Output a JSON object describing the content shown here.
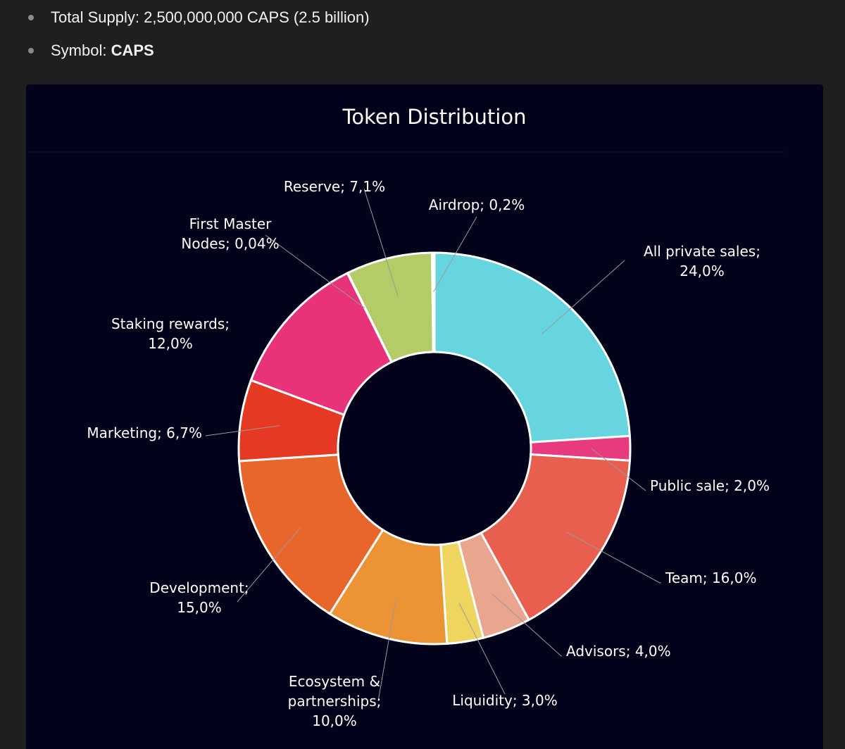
{
  "bullets": {
    "supply_label": "Total Supply:",
    "supply_value": "2,500,000,000 CAPS (2.5 billion)",
    "symbol_label": "Symbol:",
    "symbol_value": "CAPS"
  },
  "chart_data": {
    "type": "pie",
    "title": "Token Distribution",
    "unit": "%",
    "slices": [
      {
        "name": "All private sales",
        "value": 24.0,
        "label_lines": [
          "All private sales;",
          "24,0%"
        ],
        "color": "#67d5df"
      },
      {
        "name": "Public sale",
        "value": 2.0,
        "label_lines": [
          "Public sale; 2,0%"
        ],
        "color": "#e83a7e"
      },
      {
        "name": "Team",
        "value": 16.0,
        "label_lines": [
          "Team; 16,0%"
        ],
        "color": "#e85f4f"
      },
      {
        "name": "Advisors",
        "value": 4.0,
        "label_lines": [
          "Advisors; 4,0%"
        ],
        "color": "#e9a58d"
      },
      {
        "name": "Liquidity",
        "value": 3.0,
        "label_lines": [
          "Liquidity; 3,0%"
        ],
        "color": "#efd55f"
      },
      {
        "name": "Ecosystem & partnerships",
        "value": 10.0,
        "label_lines": [
          "Ecosystem &",
          "partnerships;",
          "10,0%"
        ],
        "color": "#ec9336"
      },
      {
        "name": "Development",
        "value": 15.0,
        "label_lines": [
          "Development;",
          "15,0%"
        ],
        "color": "#e8662b"
      },
      {
        "name": "Marketing",
        "value": 6.7,
        "label_lines": [
          "Marketing; 6,7%"
        ],
        "color": "#e53924"
      },
      {
        "name": "Staking rewards",
        "value": 12.0,
        "label_lines": [
          "Staking rewards;",
          "12,0%"
        ],
        "color": "#e8327a"
      },
      {
        "name": "First Master Nodes",
        "value": 0.04,
        "label_lines": [
          "First Master",
          "Nodes; 0,04%"
        ],
        "color": "#e8327a"
      },
      {
        "name": "Reserve",
        "value": 7.1,
        "label_lines": [
          "Reserve; 7,1%"
        ],
        "color": "#b3cc67"
      },
      {
        "name": "Airdrop",
        "value": 0.2,
        "label_lines": [
          "Airdrop; 0,2%"
        ],
        "color": "#ffffff"
      }
    ],
    "colors": {
      "card_background": "#02021a",
      "slice_border": "#ffffff",
      "leader_line": "#9a9a9a",
      "title_color": "#ffffff"
    }
  }
}
